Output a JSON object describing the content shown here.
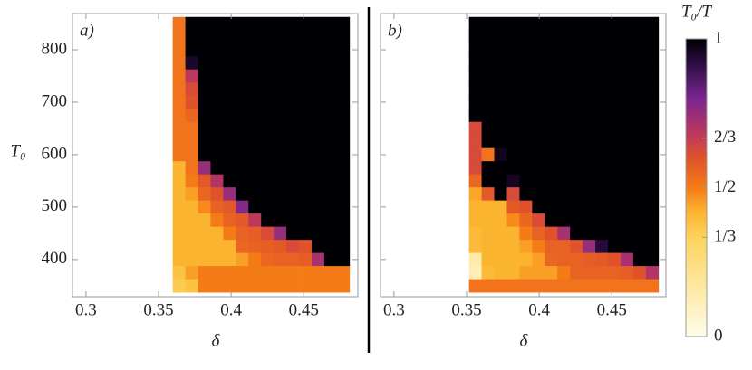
{
  "chart_data": [
    {
      "type": "heatmap",
      "panel_label": "a)",
      "xlabel": "δ",
      "ylabel": "T₀",
      "xlim": [
        0.2907,
        0.4873
      ],
      "ylim": [
        329,
        869
      ],
      "xticks": [
        0.3,
        0.35,
        0.4,
        0.45
      ],
      "yticks": [
        400,
        500,
        600,
        700,
        800
      ],
      "ytick_labels": true,
      "x": [
        0.3641,
        0.3728,
        0.3815,
        0.3902,
        0.3989,
        0.4076,
        0.4163,
        0.425,
        0.4337,
        0.4424,
        0.4511,
        0.4598,
        0.4685,
        0.4772
      ],
      "y": [
        850,
        825,
        800,
        775,
        750,
        725,
        700,
        675,
        650,
        625,
        600,
        575,
        550,
        525,
        500,
        475,
        450,
        425,
        400,
        375,
        350
      ],
      "z": [
        [
          0.52,
          1,
          1,
          1,
          1,
          1,
          1,
          1,
          1,
          1,
          1,
          1,
          1,
          1
        ],
        [
          0.52,
          1,
          1,
          1,
          1,
          1,
          1,
          1,
          1,
          1,
          1,
          1,
          1,
          1
        ],
        [
          0.52,
          1,
          1,
          1,
          1,
          1,
          1,
          1,
          1,
          1,
          1,
          1,
          1,
          1
        ],
        [
          0.52,
          0.95,
          1,
          1,
          1,
          1,
          1,
          1,
          1,
          1,
          1,
          1,
          1,
          1
        ],
        [
          0.52,
          0.68,
          1,
          1,
          1,
          1,
          1,
          1,
          1,
          1,
          1,
          1,
          1,
          1
        ],
        [
          0.52,
          0.62,
          1,
          1,
          1,
          1,
          1,
          1,
          1,
          1,
          1,
          1,
          1,
          1
        ],
        [
          0.52,
          0.6,
          1,
          1,
          1,
          1,
          1,
          1,
          1,
          1,
          1,
          1,
          1,
          1
        ],
        [
          0.52,
          0.55,
          1,
          1,
          1,
          1,
          1,
          1,
          1,
          1,
          1,
          1,
          1,
          1
        ],
        [
          0.52,
          0.52,
          1,
          1,
          1,
          1,
          1,
          1,
          1,
          1,
          1,
          1,
          1,
          1
        ],
        [
          0.52,
          0.52,
          1,
          1,
          1,
          1,
          1,
          1,
          1,
          1,
          1,
          1,
          1,
          1
        ],
        [
          0.52,
          0.52,
          1,
          1,
          1,
          1,
          1,
          1,
          1,
          1,
          1,
          1,
          1,
          1
        ],
        [
          0.42,
          0.52,
          0.75,
          1,
          1,
          1,
          1,
          1,
          1,
          1,
          1,
          1,
          1,
          1
        ],
        [
          0.42,
          0.5,
          0.58,
          0.7,
          1,
          1,
          1,
          1,
          1,
          1,
          1,
          1,
          1,
          1
        ],
        [
          0.42,
          0.45,
          0.55,
          0.6,
          0.75,
          1,
          1,
          1,
          1,
          1,
          1,
          1,
          1,
          1
        ],
        [
          0.42,
          0.42,
          0.48,
          0.56,
          0.58,
          0.78,
          1,
          1,
          1,
          1,
          1,
          1,
          1,
          1
        ],
        [
          0.42,
          0.42,
          0.42,
          0.5,
          0.56,
          0.58,
          0.68,
          1,
          1,
          1,
          1,
          1,
          1,
          1
        ],
        [
          0.42,
          0.42,
          0.42,
          0.42,
          0.5,
          0.56,
          0.57,
          0.62,
          0.75,
          1,
          1,
          1,
          1,
          1
        ],
        [
          0.42,
          0.42,
          0.42,
          0.42,
          0.42,
          0.55,
          0.56,
          0.57,
          0.58,
          0.62,
          0.6,
          1,
          1,
          1
        ],
        [
          0.42,
          0.42,
          0.42,
          0.42,
          0.42,
          0.45,
          0.5,
          0.55,
          0.56,
          0.56,
          0.57,
          0.72,
          1,
          1
        ],
        [
          0.38,
          0.45,
          0.5,
          0.5,
          0.5,
          0.5,
          0.5,
          0.5,
          0.5,
          0.5,
          0.5,
          0.5,
          0.5,
          0.5
        ],
        [
          0.35,
          0.38,
          0.5,
          0.5,
          0.5,
          0.5,
          0.5,
          0.5,
          0.5,
          0.5,
          0.5,
          0.5,
          0.5,
          0.5
        ]
      ]
    },
    {
      "type": "heatmap",
      "panel_label": "b)",
      "xlabel": "δ",
      "xlim": [
        0.2907,
        0.4873
      ],
      "ylim": [
        329,
        869
      ],
      "xticks": [
        0.3,
        0.35,
        0.4,
        0.45
      ],
      "yticks": [
        400,
        500,
        600,
        700,
        800
      ],
      "ytick_labels": false,
      "x": [
        0.356,
        0.3647,
        0.3734,
        0.3821,
        0.3908,
        0.3995,
        0.4082,
        0.4169,
        0.4256,
        0.4343,
        0.443,
        0.4517,
        0.4604,
        0.4691,
        0.4778
      ],
      "y": [
        850,
        825,
        800,
        775,
        750,
        725,
        700,
        675,
        650,
        625,
        600,
        575,
        550,
        525,
        500,
        475,
        450,
        425,
        400,
        375,
        350
      ],
      "z": [
        [
          1,
          1,
          1,
          1,
          1,
          1,
          1,
          1,
          1,
          1,
          1,
          1,
          1,
          1,
          1
        ],
        [
          1,
          1,
          1,
          1,
          1,
          1,
          1,
          1,
          1,
          1,
          1,
          1,
          1,
          1,
          1
        ],
        [
          1,
          1,
          1,
          1,
          1,
          1,
          1,
          1,
          1,
          1,
          1,
          1,
          1,
          1,
          1
        ],
        [
          1,
          1,
          1,
          1,
          1,
          1,
          1,
          1,
          1,
          1,
          1,
          1,
          1,
          1,
          1
        ],
        [
          1,
          1,
          1,
          1,
          1,
          1,
          1,
          1,
          1,
          1,
          1,
          1,
          1,
          1,
          1
        ],
        [
          1,
          1,
          1,
          1,
          1,
          1,
          1,
          1,
          1,
          1,
          1,
          1,
          1,
          1,
          1
        ],
        [
          1,
          1,
          1,
          1,
          1,
          1,
          1,
          1,
          1,
          1,
          1,
          1,
          1,
          1,
          1
        ],
        [
          1,
          1,
          1,
          1,
          1,
          1,
          1,
          1,
          1,
          1,
          1,
          1,
          1,
          1,
          1
        ],
        [
          0.62,
          1,
          1,
          1,
          1,
          1,
          1,
          1,
          1,
          1,
          1,
          1,
          1,
          1,
          1
        ],
        [
          0.62,
          1,
          1,
          1,
          1,
          1,
          1,
          1,
          1,
          1,
          1,
          1,
          1,
          1,
          1
        ],
        [
          0.62,
          0.52,
          0.97,
          1,
          1,
          1,
          1,
          1,
          1,
          1,
          1,
          1,
          1,
          1,
          1
        ],
        [
          0.62,
          1,
          1,
          1,
          1,
          1,
          1,
          1,
          1,
          1,
          1,
          1,
          1,
          1,
          1
        ],
        [
          0.55,
          1,
          1,
          0.96,
          1,
          1,
          1,
          1,
          1,
          1,
          1,
          1,
          1,
          1,
          1
        ],
        [
          0.44,
          0.58,
          1,
          0.62,
          1,
          1,
          1,
          1,
          1,
          1,
          1,
          1,
          1,
          1,
          1
        ],
        [
          0.42,
          0.42,
          0.42,
          0.58,
          0.6,
          1,
          1,
          1,
          1,
          1,
          1,
          1,
          1,
          1,
          1
        ],
        [
          0.42,
          0.42,
          0.42,
          0.48,
          0.55,
          0.62,
          1,
          1,
          1,
          1,
          1,
          1,
          1,
          1,
          1
        ],
        [
          0.4,
          0.42,
          0.42,
          0.42,
          0.5,
          0.56,
          0.6,
          0.72,
          1,
          1,
          1,
          1,
          1,
          1,
          1
        ],
        [
          0.4,
          0.42,
          0.42,
          0.42,
          0.45,
          0.5,
          0.56,
          0.56,
          0.6,
          0.75,
          0.93,
          1,
          1,
          1,
          1
        ],
        [
          0.15,
          0.42,
          0.42,
          0.42,
          0.42,
          0.45,
          0.55,
          0.56,
          0.56,
          0.57,
          0.58,
          0.6,
          0.72,
          1,
          1
        ],
        [
          0.12,
          0.4,
          0.42,
          0.42,
          0.45,
          0.45,
          0.45,
          0.5,
          0.56,
          0.56,
          0.56,
          0.56,
          0.57,
          0.6,
          0.7
        ],
        [
          0.52,
          0.52,
          0.52,
          0.52,
          0.52,
          0.52,
          0.52,
          0.52,
          0.52,
          0.52,
          0.52,
          0.52,
          0.52,
          0.52,
          0.52
        ]
      ]
    },
    {
      "type": "colorbar",
      "title": "T₀/T",
      "lim": [
        0,
        1
      ],
      "ticks": [
        0,
        {
          "value": 0.3333,
          "label": "1/3"
        },
        {
          "value": 0.5,
          "label": "1/2"
        },
        {
          "value": 0.6667,
          "label": "2/3"
        },
        1
      ],
      "colorscale": [
        [
          0,
          "#fffdea"
        ],
        [
          0.33,
          "#fcd35c"
        ],
        [
          0.42,
          "#fbb42f"
        ],
        [
          0.5,
          "#f57b17"
        ],
        [
          0.6,
          "#e0522b"
        ],
        [
          0.67,
          "#c23b58"
        ],
        [
          0.8,
          "#7a2690"
        ],
        [
          0.92,
          "#2a0d40"
        ],
        [
          1,
          "#000004"
        ]
      ]
    }
  ]
}
